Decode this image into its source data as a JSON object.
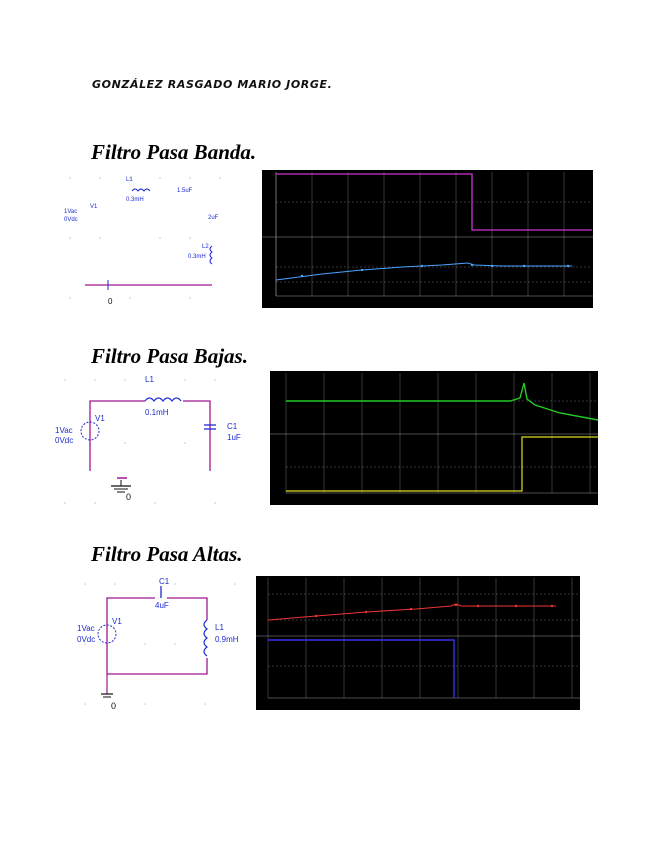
{
  "author": "GONZÁLEZ RASGADO MARIO JORGE.",
  "sections": [
    {
      "title": "Filtro Pasa Banda.",
      "circuit": {
        "L1_name": "L1",
        "L1_value": "0.3mH",
        "C_value": "1.5uF",
        "C2_value": "2uF",
        "L2_name": "L2",
        "L2_value": "0.3mH",
        "V1_name": "V1",
        "V1_ac": "1Vac",
        "V1_dc": "0Vdc",
        "ground": "0"
      }
    },
    {
      "title": "Filtro Pasa Bajas.",
      "circuit": {
        "L1_name": "L1",
        "L1_value": "0.1mH",
        "C1_name": "C1",
        "C1_value": "1uF",
        "V1_name": "V1",
        "V1_ac": "1Vac",
        "V1_dc": "0Vdc",
        "ground": "0"
      }
    },
    {
      "title": "Filtro Pasa Altas.",
      "circuit": {
        "C1_name": "C1",
        "C1_value": "4uF",
        "L1_name": "L1",
        "L1_value": "0.9mH",
        "V1_name": "V1",
        "V1_ac": "1Vac",
        "V1_dc": "0Vdc",
        "ground": "0"
      }
    }
  ],
  "colors": {
    "wire": "#a0178f",
    "component": "#1d2bd0",
    "plot_bg": "#000000",
    "grid": "#6d6d6d",
    "bandpass_trace_top": "#cc33cc",
    "bandpass_trace_bottom": "#4aa3ff",
    "lowpass_trace_top": "#22cc22",
    "lowpass_trace_bottom": "#dddd22",
    "highpass_trace_top": "#ee3333",
    "highpass_trace_bottom": "#3333ee"
  }
}
